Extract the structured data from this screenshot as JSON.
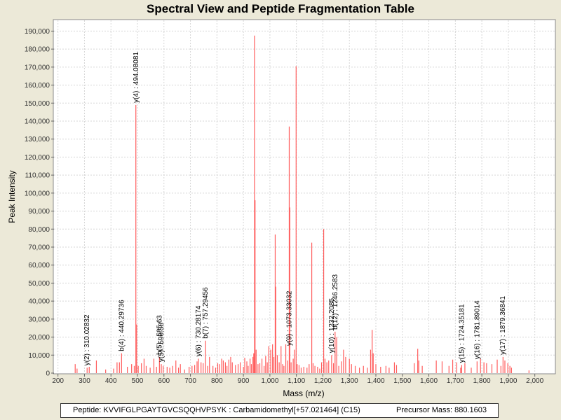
{
  "chart_data": {
    "type": "bar",
    "title": "Spectral View and Peptide Fragmentation Table",
    "xlabel": "Mass (m/z)",
    "ylabel": "Peak Intensity",
    "xlim": [
      185,
      2075
    ],
    "ylim": [
      0,
      196000
    ],
    "x_ticks": [
      200,
      300,
      400,
      500,
      600,
      700,
      800,
      900,
      1000,
      1100,
      1200,
      1300,
      1400,
      1500,
      1600,
      1700,
      1800,
      1900,
      2000
    ],
    "x_tick_labels": [
      "200",
      "300",
      "400",
      "500",
      "600",
      "700",
      "800",
      "900",
      "1,000",
      "1,100",
      "1,200",
      "1,300",
      "1,400",
      "1,500",
      "1,600",
      "1,700",
      "1,800",
      "1,900",
      "2,000"
    ],
    "y_ticks": [
      0,
      10000,
      20000,
      30000,
      40000,
      50000,
      60000,
      70000,
      80000,
      90000,
      100000,
      110000,
      120000,
      130000,
      140000,
      150000,
      160000,
      170000,
      180000,
      190000
    ],
    "y_tick_labels": [
      "0",
      "10,000",
      "20,000",
      "30,000",
      "40,000",
      "50,000",
      "60,000",
      "70,000",
      "80,000",
      "90,000",
      "100,000",
      "110,000",
      "120,000",
      "130,000",
      "140,000",
      "150,000",
      "160,000",
      "170,000",
      "180,000",
      "190,000"
    ],
    "grid": true,
    "series_color": "#ff5c5c",
    "peaks": [
      [
        265,
        5000
      ],
      [
        272,
        2500
      ],
      [
        310,
        3000
      ],
      [
        318,
        3500
      ],
      [
        345,
        7000
      ],
      [
        380,
        2000
      ],
      [
        410,
        2500
      ],
      [
        423,
        6000
      ],
      [
        432,
        6000
      ],
      [
        440,
        11000
      ],
      [
        462,
        3500
      ],
      [
        478,
        5000
      ],
      [
        488,
        4000
      ],
      [
        494,
        149000
      ],
      [
        497,
        27000
      ],
      [
        503,
        4000
      ],
      [
        515,
        5500
      ],
      [
        525,
        8000
      ],
      [
        533,
        4000
      ],
      [
        548,
        3000
      ],
      [
        562,
        8000
      ],
      [
        572,
        3500
      ],
      [
        583,
        9000
      ],
      [
        590,
        5000
      ],
      [
        597,
        4000
      ],
      [
        612,
        3500
      ],
      [
        622,
        3000
      ],
      [
        633,
        4000
      ],
      [
        645,
        7000
      ],
      [
        655,
        3000
      ],
      [
        662,
        5000
      ],
      [
        678,
        2000
      ],
      [
        695,
        3500
      ],
      [
        706,
        4000
      ],
      [
        716,
        4500
      ],
      [
        725,
        6500
      ],
      [
        730,
        8000
      ],
      [
        740,
        6000
      ],
      [
        748,
        5500
      ],
      [
        757,
        18000
      ],
      [
        765,
        4000
      ],
      [
        772,
        9000
      ],
      [
        785,
        4000
      ],
      [
        795,
        3000
      ],
      [
        803,
        5500
      ],
      [
        810,
        5000
      ],
      [
        818,
        8000
      ],
      [
        824,
        7000
      ],
      [
        832,
        6000
      ],
      [
        838,
        4000
      ],
      [
        845,
        7500
      ],
      [
        852,
        9000
      ],
      [
        858,
        6000
      ],
      [
        870,
        4500
      ],
      [
        880,
        5000
      ],
      [
        888,
        6000
      ],
      [
        900,
        3500
      ],
      [
        905,
        8500
      ],
      [
        913,
        6500
      ],
      [
        918,
        4000
      ],
      [
        925,
        8000
      ],
      [
        930,
        5000
      ],
      [
        936,
        9000
      ],
      [
        939,
        11000
      ],
      [
        942,
        187500
      ],
      [
        944,
        96000
      ],
      [
        948,
        13000
      ],
      [
        955,
        5000
      ],
      [
        962,
        5500
      ],
      [
        970,
        8000
      ],
      [
        978,
        4000
      ],
      [
        984,
        9500
      ],
      [
        990,
        6000
      ],
      [
        996,
        15000
      ],
      [
        1003,
        13000
      ],
      [
        1010,
        16000
      ],
      [
        1015,
        9000
      ],
      [
        1020,
        77000
      ],
      [
        1022,
        48000
      ],
      [
        1028,
        10000
      ],
      [
        1035,
        6000
      ],
      [
        1042,
        15000
      ],
      [
        1048,
        5000
      ],
      [
        1053,
        4000
      ],
      [
        1060,
        16000
      ],
      [
        1067,
        7000
      ],
      [
        1073,
        137000
      ],
      [
        1075,
        92000
      ],
      [
        1080,
        6000
      ],
      [
        1088,
        8000
      ],
      [
        1093,
        13000
      ],
      [
        1099,
        170500
      ],
      [
        1103,
        5000
      ],
      [
        1110,
        4500
      ],
      [
        1118,
        3000
      ],
      [
        1128,
        3500
      ],
      [
        1140,
        3000
      ],
      [
        1148,
        5000
      ],
      [
        1158,
        72500
      ],
      [
        1163,
        5500
      ],
      [
        1170,
        4000
      ],
      [
        1180,
        3500
      ],
      [
        1188,
        2500
      ],
      [
        1195,
        6000
      ],
      [
        1203,
        80000
      ],
      [
        1208,
        8000
      ],
      [
        1215,
        6000
      ],
      [
        1222,
        7000
      ],
      [
        1233,
        10000
      ],
      [
        1240,
        5500
      ],
      [
        1246,
        23000
      ],
      [
        1252,
        20000
      ],
      [
        1260,
        4000
      ],
      [
        1270,
        6500
      ],
      [
        1278,
        13000
      ],
      [
        1286,
        9000
      ],
      [
        1300,
        8000
      ],
      [
        1308,
        5000
      ],
      [
        1322,
        4000
      ],
      [
        1338,
        3000
      ],
      [
        1353,
        4000
      ],
      [
        1368,
        3000
      ],
      [
        1380,
        13000
      ],
      [
        1386,
        24000
      ],
      [
        1390,
        11000
      ],
      [
        1400,
        5000
      ],
      [
        1418,
        3500
      ],
      [
        1438,
        4000
      ],
      [
        1450,
        3000
      ],
      [
        1470,
        6000
      ],
      [
        1478,
        4500
      ],
      [
        1545,
        5500
      ],
      [
        1558,
        13500
      ],
      [
        1562,
        7000
      ],
      [
        1575,
        4000
      ],
      [
        1628,
        7000
      ],
      [
        1650,
        6500
      ],
      [
        1676,
        4000
      ],
      [
        1690,
        7500
      ],
      [
        1705,
        6000
      ],
      [
        1720,
        3000
      ],
      [
        1724,
        4500
      ],
      [
        1736,
        5500
      ],
      [
        1760,
        3000
      ],
      [
        1782,
        6500
      ],
      [
        1795,
        8000
      ],
      [
        1808,
        6000
      ],
      [
        1818,
        5500
      ],
      [
        1838,
        5000
      ],
      [
        1858,
        7500
      ],
      [
        1872,
        4000
      ],
      [
        1880,
        9000
      ],
      [
        1887,
        7000
      ],
      [
        1898,
        5500
      ],
      [
        1906,
        4000
      ],
      [
        1912,
        3000
      ],
      [
        1978,
        1500
      ]
    ],
    "annotations": [
      {
        "label": "y(2) : 310.02832",
        "x": 310.02832,
        "y": 3000
      },
      {
        "label": "b(4) : 440.29736",
        "x": 440.29736,
        "y": 11000
      },
      {
        "label": "y(4) : 494.08081",
        "x": 494.08081,
        "y": 149000
      },
      {
        "label": "b(5) : 585.63",
        "x": 583,
        "y": 9000
      },
      {
        "label": "y(5) : 596.38",
        "x": 590,
        "y": 5000
      },
      {
        "label": "y(6) : 730.28174",
        "x": 730.28174,
        "y": 8000
      },
      {
        "label": "b(7) : 757.29456",
        "x": 757.29456,
        "y": 18000
      },
      {
        "label": "y(9) : 1073.33032",
        "x": 1073.33032,
        "y": 14000
      },
      {
        "label": "y(10) : 1232.2085",
        "x": 1233,
        "y": 10000
      },
      {
        "label": "b(12) : 1246.2583",
        "x": 1246.2583,
        "y": 23000
      },
      {
        "label": "y(15) : 1724.35181",
        "x": 1724.35181,
        "y": 4500
      },
      {
        "label": "y(16) : 1781.89014",
        "x": 1781.89014,
        "y": 6500
      },
      {
        "label": "y(17) : 1879.36841",
        "x": 1879.36841,
        "y": 9000
      }
    ]
  },
  "legend": {
    "peptide": "Peptide: KVVIFGLPGAYTGVCSQQHVPSYK : Carbamidomethyl[+57.021464] (C15)",
    "precursor": "Precursor Mass: 880.1603"
  }
}
